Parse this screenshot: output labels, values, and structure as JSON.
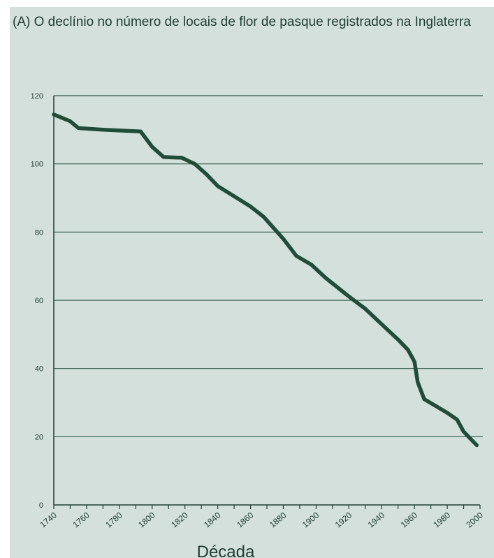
{
  "chart_data": {
    "type": "line",
    "title": "(A) O declínio no número de locais de flor de pasque registrados na Inglaterra",
    "xlabel": "Década",
    "ylabel": "",
    "xlim": [
      1740,
      2000
    ],
    "ylim": [
      0,
      120
    ],
    "x_ticks": [
      "1740",
      "1760",
      "1780",
      "1800",
      "1820",
      "1840",
      "1860",
      "1880",
      "1900",
      "1920",
      "1940",
      "1960",
      "1980",
      "2000"
    ],
    "y_ticks": [
      "0",
      "20",
      "40",
      "60",
      "80",
      "100",
      "120"
    ],
    "grid": "horizontal",
    "line_color": "#1f4d3a",
    "series": [
      {
        "points": [
          [
            1740,
            114.5
          ],
          [
            1750,
            112.5
          ],
          [
            1755,
            110.5
          ],
          [
            1770,
            110
          ],
          [
            1793,
            109.5
          ],
          [
            1800,
            105
          ],
          [
            1807,
            102
          ],
          [
            1818,
            101.8
          ],
          [
            1826,
            100
          ],
          [
            1833,
            97
          ],
          [
            1840,
            93.5
          ],
          [
            1850,
            90.5
          ],
          [
            1860,
            87.5
          ],
          [
            1868,
            84.5
          ],
          [
            1880,
            78
          ],
          [
            1888,
            73
          ],
          [
            1897,
            70.5
          ],
          [
            1906,
            66.5
          ],
          [
            1919,
            61.5
          ],
          [
            1930,
            57.5
          ],
          [
            1940,
            53
          ],
          [
            1950,
            48.5
          ],
          [
            1956,
            45.5
          ],
          [
            1960,
            42
          ],
          [
            1962,
            36
          ],
          [
            1966,
            31
          ],
          [
            1973,
            29
          ],
          [
            1980,
            27
          ],
          [
            1986,
            25
          ],
          [
            1990,
            21.5
          ],
          [
            1998,
            17.5
          ]
        ]
      }
    ]
  }
}
